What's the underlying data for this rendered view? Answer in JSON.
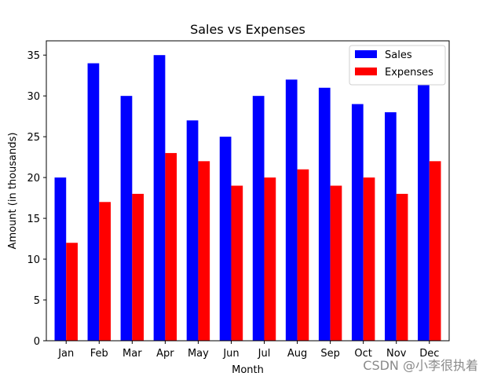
{
  "chart_data": {
    "type": "bar",
    "title": "Sales vs Expenses",
    "xlabel": "Month",
    "ylabel": "Amount (in thousands)",
    "categories": [
      "Jan",
      "Feb",
      "Mar",
      "Apr",
      "May",
      "Jun",
      "Jul",
      "Aug",
      "Sep",
      "Oct",
      "Nov",
      "Dec"
    ],
    "series": [
      {
        "name": "Sales",
        "color": "#0000ff",
        "values": [
          20,
          34,
          30,
          35,
          27,
          25,
          30,
          32,
          31,
          29,
          28,
          35
        ]
      },
      {
        "name": "Expenses",
        "color": "#ff0000",
        "values": [
          12,
          17,
          18,
          23,
          22,
          19,
          20,
          21,
          19,
          20,
          18,
          22
        ]
      }
    ],
    "ylim": [
      0,
      36.75
    ],
    "yticks": [
      0,
      5,
      10,
      15,
      20,
      25,
      30,
      35
    ],
    "grid": false,
    "legend_position": "top-right"
  },
  "watermark": "CSDN @小李很执着"
}
